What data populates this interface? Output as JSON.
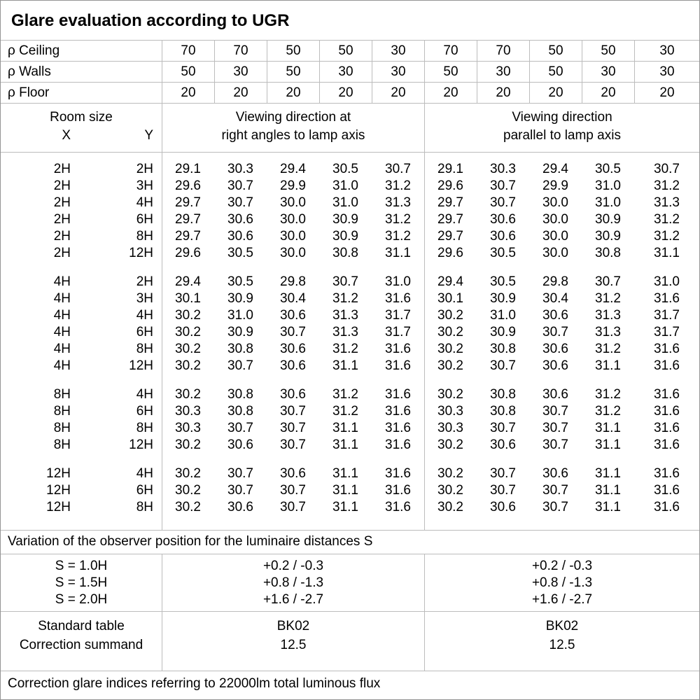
{
  "title": "Glare evaluation according to UGR",
  "reflectances": [
    {
      "label": "ρ Ceiling",
      "values": [
        "70",
        "70",
        "50",
        "50",
        "30",
        "70",
        "70",
        "50",
        "50",
        "30"
      ]
    },
    {
      "label": "ρ Walls",
      "values": [
        "50",
        "30",
        "50",
        "30",
        "30",
        "50",
        "30",
        "50",
        "30",
        "30"
      ]
    },
    {
      "label": "ρ Floor",
      "values": [
        "20",
        "20",
        "20",
        "20",
        "20",
        "20",
        "20",
        "20",
        "20",
        "20"
      ]
    }
  ],
  "header": {
    "room_size": "Room size",
    "x": "X",
    "y": "Y",
    "left_line1": "Viewing direction at",
    "left_line2": "right angles to lamp axis",
    "right_line1": "Viewing direction",
    "right_line2": "parallel to lamp axis"
  },
  "groups": [
    {
      "rows": [
        {
          "x": "2H",
          "y": "2H",
          "values": [
            "29.1",
            "30.3",
            "29.4",
            "30.5",
            "30.7",
            "29.1",
            "30.3",
            "29.4",
            "30.5",
            "30.7"
          ]
        },
        {
          "x": "2H",
          "y": "3H",
          "values": [
            "29.6",
            "30.7",
            "29.9",
            "31.0",
            "31.2",
            "29.6",
            "30.7",
            "29.9",
            "31.0",
            "31.2"
          ]
        },
        {
          "x": "2H",
          "y": "4H",
          "values": [
            "29.7",
            "30.7",
            "30.0",
            "31.0",
            "31.3",
            "29.7",
            "30.7",
            "30.0",
            "31.0",
            "31.3"
          ]
        },
        {
          "x": "2H",
          "y": "6H",
          "values": [
            "29.7",
            "30.6",
            "30.0",
            "30.9",
            "31.2",
            "29.7",
            "30.6",
            "30.0",
            "30.9",
            "31.2"
          ]
        },
        {
          "x": "2H",
          "y": "8H",
          "values": [
            "29.7",
            "30.6",
            "30.0",
            "30.9",
            "31.2",
            "29.7",
            "30.6",
            "30.0",
            "30.9",
            "31.2"
          ]
        },
        {
          "x": "2H",
          "y": "12H",
          "values": [
            "29.6",
            "30.5",
            "30.0",
            "30.8",
            "31.1",
            "29.6",
            "30.5",
            "30.0",
            "30.8",
            "31.1"
          ]
        }
      ]
    },
    {
      "rows": [
        {
          "x": "4H",
          "y": "2H",
          "values": [
            "29.4",
            "30.5",
            "29.8",
            "30.7",
            "31.0",
            "29.4",
            "30.5",
            "29.8",
            "30.7",
            "31.0"
          ]
        },
        {
          "x": "4H",
          "y": "3H",
          "values": [
            "30.1",
            "30.9",
            "30.4",
            "31.2",
            "31.6",
            "30.1",
            "30.9",
            "30.4",
            "31.2",
            "31.6"
          ]
        },
        {
          "x": "4H",
          "y": "4H",
          "values": [
            "30.2",
            "31.0",
            "30.6",
            "31.3",
            "31.7",
            "30.2",
            "31.0",
            "30.6",
            "31.3",
            "31.7"
          ]
        },
        {
          "x": "4H",
          "y": "6H",
          "values": [
            "30.2",
            "30.9",
            "30.7",
            "31.3",
            "31.7",
            "30.2",
            "30.9",
            "30.7",
            "31.3",
            "31.7"
          ]
        },
        {
          "x": "4H",
          "y": "8H",
          "values": [
            "30.2",
            "30.8",
            "30.6",
            "31.2",
            "31.6",
            "30.2",
            "30.8",
            "30.6",
            "31.2",
            "31.6"
          ]
        },
        {
          "x": "4H",
          "y": "12H",
          "values": [
            "30.2",
            "30.7",
            "30.6",
            "31.1",
            "31.6",
            "30.2",
            "30.7",
            "30.6",
            "31.1",
            "31.6"
          ]
        }
      ]
    },
    {
      "rows": [
        {
          "x": "8H",
          "y": "4H",
          "values": [
            "30.2",
            "30.8",
            "30.6",
            "31.2",
            "31.6",
            "30.2",
            "30.8",
            "30.6",
            "31.2",
            "31.6"
          ]
        },
        {
          "x": "8H",
          "y": "6H",
          "values": [
            "30.3",
            "30.8",
            "30.7",
            "31.2",
            "31.6",
            "30.3",
            "30.8",
            "30.7",
            "31.2",
            "31.6"
          ]
        },
        {
          "x": "8H",
          "y": "8H",
          "values": [
            "30.3",
            "30.7",
            "30.7",
            "31.1",
            "31.6",
            "30.3",
            "30.7",
            "30.7",
            "31.1",
            "31.6"
          ]
        },
        {
          "x": "8H",
          "y": "12H",
          "values": [
            "30.2",
            "30.6",
            "30.7",
            "31.1",
            "31.6",
            "30.2",
            "30.6",
            "30.7",
            "31.1",
            "31.6"
          ]
        }
      ]
    },
    {
      "rows": [
        {
          "x": "12H",
          "y": "4H",
          "values": [
            "30.2",
            "30.7",
            "30.6",
            "31.1",
            "31.6",
            "30.2",
            "30.7",
            "30.6",
            "31.1",
            "31.6"
          ]
        },
        {
          "x": "12H",
          "y": "6H",
          "values": [
            "30.2",
            "30.7",
            "30.7",
            "31.1",
            "31.6",
            "30.2",
            "30.7",
            "30.7",
            "31.1",
            "31.6"
          ]
        },
        {
          "x": "12H",
          "y": "8H",
          "values": [
            "30.2",
            "30.6",
            "30.7",
            "31.1",
            "31.6",
            "30.2",
            "30.6",
            "30.7",
            "31.1",
            "31.6"
          ]
        }
      ]
    }
  ],
  "variation_note": "Variation of the observer position for the luminaire distances S",
  "s_variation": {
    "labels": [
      "S = 1.0H",
      "S = 1.5H",
      "S = 2.0H"
    ],
    "left_values": [
      "+0.2 / -0.3",
      "+0.8 / -1.3",
      "+1.6 / -2.7"
    ],
    "right_values": [
      "+0.2 / -0.3",
      "+0.8 / -1.3",
      "+1.6 / -2.7"
    ]
  },
  "summary": {
    "rows": [
      {
        "label": "Standard table",
        "left": "BK02",
        "right": "BK02"
      },
      {
        "label": "Correction summand",
        "left": "12.5",
        "right": "12.5"
      }
    ]
  },
  "footer": "Correction glare indices referring to 22000lm total luminous flux"
}
